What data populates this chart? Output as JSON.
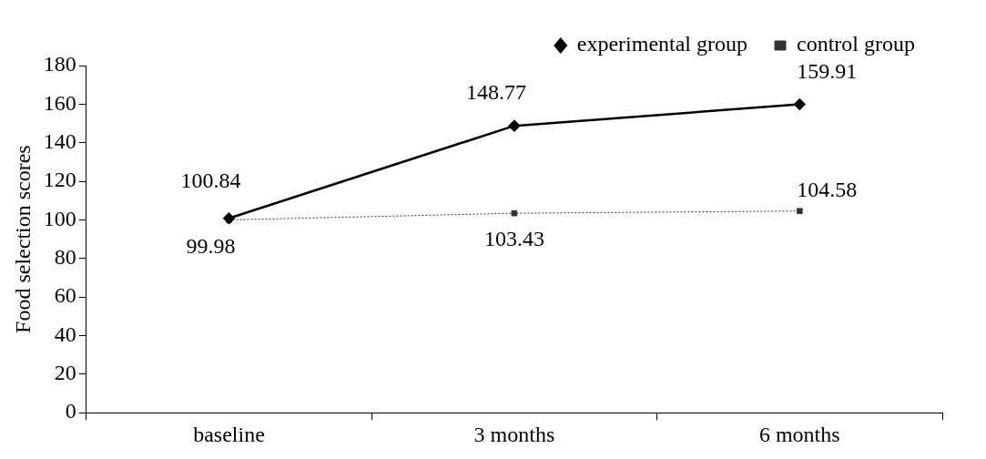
{
  "chart_data": {
    "type": "line",
    "ylabel": "Food selection scores",
    "categories": [
      "baseline",
      "3 months",
      "6 months"
    ],
    "series": [
      {
        "name": "experimental group",
        "color": "#000000",
        "values": [
          100.84,
          148.77,
          159.91
        ],
        "marker": "diamond",
        "line_style": "solid"
      },
      {
        "name": "control group",
        "color": "#333333",
        "values": [
          99.98,
          103.43,
          104.58
        ],
        "marker": "square",
        "line_style": "dotted"
      }
    ],
    "ylim": [
      0,
      180
    ],
    "yticks": [
      0,
      20,
      40,
      60,
      80,
      100,
      120,
      140,
      160,
      180
    ],
    "grid": false,
    "legend": "top",
    "data_labels": true
  }
}
